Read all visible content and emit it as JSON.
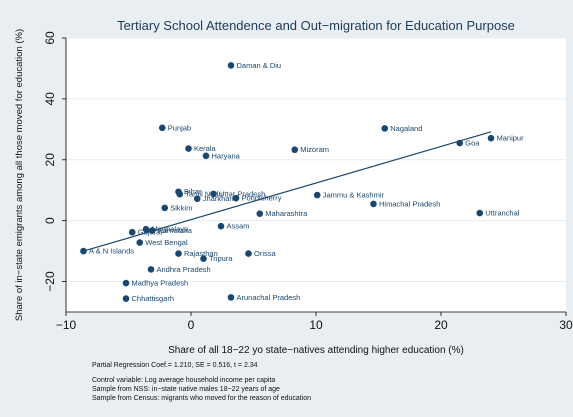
{
  "chart_data": {
    "type": "scatter",
    "title": "Tertiary School Attendence and Out−migration for Education Purpose",
    "xlabel": "Share of all 18−22 yo state−natives attending higher education (%)",
    "ylabel": "Share of in−state emigrants among all those moved for education (%)",
    "xlim": [
      -10,
      30
    ],
    "ylim": [
      -30,
      60
    ],
    "x_ticks": [
      -10,
      0,
      10,
      20,
      30
    ],
    "y_ticks": [
      -20,
      0,
      20,
      40,
      60
    ],
    "x_tick_labels": [
      "−10",
      "0",
      "10",
      "20",
      "30"
    ],
    "y_tick_labels": [
      "−20",
      "0",
      "20",
      "40",
      "60"
    ],
    "grid": true,
    "legend": "none",
    "marker_color": "#1a476f",
    "line_color": "#1a476f",
    "fit_line": {
      "x": [
        -8.6,
        24.0
      ],
      "y": [
        -10.0,
        29.2
      ]
    },
    "points": [
      {
        "label": "Daman & Diu",
        "x": 3.2,
        "y": 51.0
      },
      {
        "label": "Nagaland",
        "x": 15.5,
        "y": 30.3
      },
      {
        "label": "Punjab",
        "x": -2.3,
        "y": 30.5
      },
      {
        "label": "Manipur",
        "x": 24.0,
        "y": 27.1
      },
      {
        "label": "Goa",
        "x": 21.5,
        "y": 25.5
      },
      {
        "label": "Kerala",
        "x": -0.2,
        "y": 23.7
      },
      {
        "label": "Mizoram",
        "x": 8.3,
        "y": 23.3
      },
      {
        "label": "Haryana",
        "x": 1.2,
        "y": 21.3
      },
      {
        "label": "Bihar",
        "x": -1.0,
        "y": 9.5
      },
      {
        "label": "Tamil Nadu",
        "x": -0.9,
        "y": 8.7
      },
      {
        "label": "Uttar Pradesh",
        "x": 1.8,
        "y": 8.8
      },
      {
        "label": "Jharkhand",
        "x": 0.5,
        "y": 7.2
      },
      {
        "label": "Pondicherry",
        "x": 3.6,
        "y": 7.4
      },
      {
        "label": "Jammu & Kashmir",
        "x": 10.1,
        "y": 8.4
      },
      {
        "label": "Himachal Pradesh",
        "x": 14.6,
        "y": 5.5
      },
      {
        "label": "Sikkim",
        "x": -2.1,
        "y": 4.2
      },
      {
        "label": "Maharashtra",
        "x": 5.5,
        "y": 2.3
      },
      {
        "label": "Uttranchal",
        "x": 23.1,
        "y": 2.5
      },
      {
        "label": "Assam",
        "x": 2.4,
        "y": -1.8
      },
      {
        "label": "Meghalaya",
        "x": -3.6,
        "y": -2.8
      },
      {
        "label": "Karnataka",
        "x": -3.1,
        "y": -3.2
      },
      {
        "label": "Gujarat",
        "x": -4.7,
        "y": -3.8
      },
      {
        "label": "West Bengal",
        "x": -4.1,
        "y": -7.2
      },
      {
        "label": "A & N Islands",
        "x": -8.6,
        "y": -10.0
      },
      {
        "label": "Rajasthan",
        "x": -1.0,
        "y": -10.8
      },
      {
        "label": "Orissa",
        "x": 4.6,
        "y": -10.8
      },
      {
        "label": "Tripura",
        "x": 1.0,
        "y": -12.5
      },
      {
        "label": "Andhra Pradesh",
        "x": -3.2,
        "y": -16.0
      },
      {
        "label": "Madhya Pradesh",
        "x": -5.2,
        "y": -20.5
      },
      {
        "label": "Chhattisgarh",
        "x": -5.2,
        "y": -25.6
      },
      {
        "label": "Arunachal Pradesh",
        "x": 3.2,
        "y": -25.2
      }
    ]
  },
  "notes": {
    "regression": "Partial Regression Coef.= 1.210, SE = 0.516, t = 2.34",
    "control": "Control variable: Log average household income per capita",
    "nss": "Sample from NSS: in−state native males 18−22 years of age",
    "census": "Sample from Census: migrants who moved for the reason of education"
  }
}
